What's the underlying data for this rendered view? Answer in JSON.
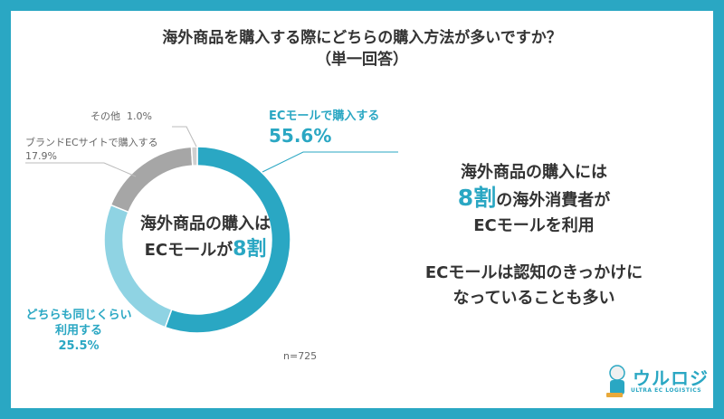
{
  "title": {
    "line1": "海外商品を購入する際にどちらの購入方法が多いですか？",
    "line2": "（単一回答）"
  },
  "chart_data": {
    "type": "pie",
    "categories": [
      "ECモールで購入する",
      "どちらも同じくらい利用する",
      "ブランドECサイトで購入する",
      "その他"
    ],
    "values": [
      55.6,
      25.5,
      17.9,
      1.0
    ],
    "colors": [
      "#2aa7c3",
      "#8fd3e3",
      "#a6a6a6",
      "#cfcfcf"
    ],
    "value_labels": [
      "55.6%",
      "25.5%",
      "17.9%",
      "1.0%"
    ],
    "donut": true
  },
  "labels": {
    "ec_mall": {
      "name": "ECモールで購入する",
      "value": "55.6%"
    },
    "both": {
      "line1": "どちらも同じくらい",
      "line2": "利用する",
      "value": "25.5%"
    },
    "brand_ec": {
      "name": "ブランドECサイトで購入する",
      "value": "17.9%"
    },
    "other": {
      "name": "その他",
      "value": "1.0%"
    }
  },
  "center": {
    "line1": "海外商品の購入は",
    "line2_prefix": "ECモールが",
    "line2_highlight": "8割"
  },
  "summary": {
    "line1": "海外商品の購入には",
    "line2_highlight": "8割",
    "line2_rest": "の海外消費者が",
    "line3": "ECモールを利用",
    "line4": "ECモールは認知のきっかけに",
    "line5": "なっていることも多い"
  },
  "n_label": "n=725",
  "logo": {
    "name": "ウルロジ",
    "sub": "ULTRA EC LOGISTICS"
  }
}
